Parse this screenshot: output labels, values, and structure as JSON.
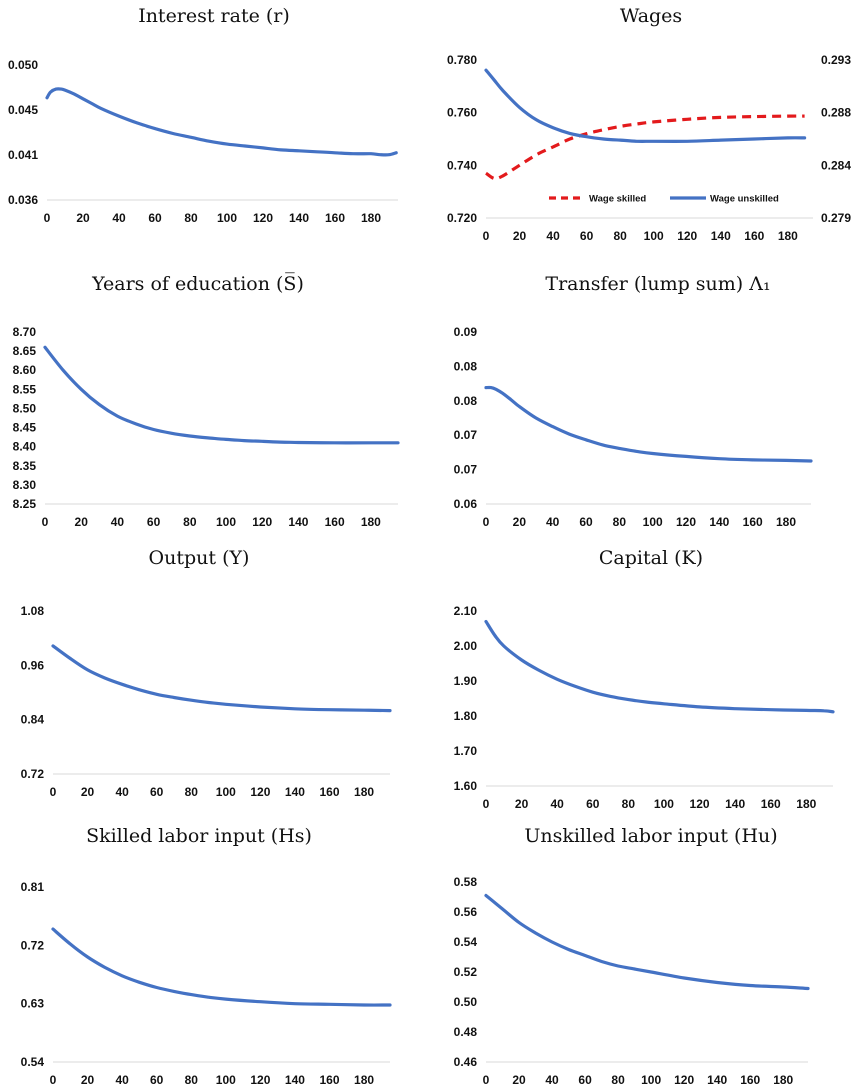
{
  "colors": {
    "primary": "#4472C4",
    "secondary": "#E31A1C",
    "axis": "#d9d9d9"
  },
  "chart_data": [
    {
      "id": "interest",
      "type": "line",
      "title": "Interest rate (r)",
      "x_ticks": [
        "0",
        "20",
        "40",
        "60",
        "80",
        "100",
        "120",
        "140",
        "160",
        "180"
      ],
      "y_ticks": [
        "0.050",
        "0.045",
        "0.041",
        "0.036"
      ],
      "ylim": [
        0.036,
        0.05
      ],
      "xlim": [
        0,
        195
      ],
      "series": [
        {
          "style": "solid",
          "color": "#4472C4",
          "x": [
            0,
            2,
            5,
            8,
            10,
            15,
            20,
            25,
            30,
            40,
            50,
            60,
            70,
            80,
            90,
            100,
            110,
            120,
            130,
            140,
            150,
            160,
            170,
            180,
            185,
            190,
            194
          ],
          "y": [
            0.0466,
            0.0472,
            0.0475,
            0.0475,
            0.0474,
            0.047,
            0.0465,
            0.046,
            0.0455,
            0.0447,
            0.044,
            0.0434,
            0.0429,
            0.0425,
            0.0421,
            0.0418,
            0.0416,
            0.0414,
            0.0412,
            0.0411,
            0.041,
            0.0409,
            0.0408,
            0.0408,
            0.0407,
            0.0407,
            0.0409
          ]
        }
      ]
    },
    {
      "id": "wages",
      "type": "line",
      "title": "Wages",
      "x_ticks": [
        "0",
        "20",
        "40",
        "60",
        "80",
        "100",
        "120",
        "140",
        "160",
        "180"
      ],
      "y_ticks": [
        "0.780",
        "0.760",
        "0.740",
        "0.720"
      ],
      "ylim": [
        0.72,
        0.78
      ],
      "y2_ticks": [
        "0.293",
        "0.288",
        "0.284",
        "0.279"
      ],
      "y2lim": [
        0.279,
        0.293
      ],
      "xlim": [
        0,
        195
      ],
      "legend": "bottom-center",
      "series": [
        {
          "name": "Wage skilled",
          "style": "dashed",
          "color": "#E31A1C",
          "axis": "left",
          "x": [
            0,
            5,
            10,
            20,
            30,
            40,
            50,
            60,
            70,
            80,
            90,
            100,
            120,
            140,
            160,
            180,
            190
          ],
          "y": [
            0.737,
            0.735,
            0.736,
            0.74,
            0.744,
            0.747,
            0.75,
            0.752,
            0.7535,
            0.7548,
            0.7557,
            0.7565,
            0.7575,
            0.7582,
            0.7585,
            0.7587,
            0.7587
          ]
        },
        {
          "name": "Wage unskilled",
          "style": "solid",
          "color": "#4472C4",
          "axis": "right",
          "x": [
            0,
            5,
            10,
            20,
            30,
            40,
            50,
            60,
            70,
            80,
            90,
            100,
            120,
            140,
            160,
            180,
            190
          ],
          "y": [
            0.2921,
            0.2912,
            0.2903,
            0.2888,
            0.2877,
            0.287,
            0.2865,
            0.2862,
            0.286,
            0.2859,
            0.2858,
            0.2858,
            0.2858,
            0.2859,
            0.286,
            0.2861,
            0.2861
          ]
        }
      ]
    },
    {
      "id": "education",
      "type": "line",
      "title": "Years of education (S̅)",
      "x_ticks": [
        "0",
        "20",
        "40",
        "60",
        "80",
        "100",
        "120",
        "140",
        "160",
        "180"
      ],
      "y_ticks": [
        "8.70",
        "8.65",
        "8.60",
        "8.55",
        "8.50",
        "8.45",
        "8.40",
        "8.35",
        "8.30",
        "8.25"
      ],
      "ylim": [
        8.25,
        8.7
      ],
      "xlim": [
        0,
        195
      ],
      "series": [
        {
          "style": "solid",
          "color": "#4472C4",
          "x": [
            0,
            10,
            20,
            30,
            40,
            50,
            60,
            70,
            80,
            90,
            100,
            110,
            120,
            130,
            140,
            160,
            180,
            195
          ],
          "y": [
            8.66,
            8.6,
            8.55,
            8.51,
            8.48,
            8.46,
            8.445,
            8.435,
            8.428,
            8.423,
            8.419,
            8.416,
            8.414,
            8.412,
            8.411,
            8.41,
            8.41,
            8.41
          ]
        }
      ]
    },
    {
      "id": "transfer",
      "type": "line",
      "title": "Transfer (lump sum) Λ₁",
      "x_ticks": [
        "0",
        "20",
        "40",
        "60",
        "80",
        "100",
        "120",
        "140",
        "160",
        "180"
      ],
      "y_ticks": [
        "0.09",
        "0.08",
        "0.08",
        "0.07",
        "0.07",
        "0.06"
      ],
      "ylim": [
        0.06,
        0.09
      ],
      "xlim": [
        0,
        195
      ],
      "series": [
        {
          "style": "solid",
          "color": "#4472C4",
          "x": [
            0,
            3,
            6,
            10,
            15,
            20,
            30,
            40,
            50,
            60,
            70,
            80,
            90,
            100,
            120,
            140,
            160,
            180,
            195
          ],
          "y": [
            0.0803,
            0.0803,
            0.08,
            0.0793,
            0.0782,
            0.077,
            0.075,
            0.0735,
            0.0722,
            0.0712,
            0.0703,
            0.0697,
            0.0692,
            0.0688,
            0.0683,
            0.0679,
            0.0677,
            0.0676,
            0.0675
          ]
        }
      ]
    },
    {
      "id": "output",
      "type": "line",
      "title": "Output (Y)",
      "x_ticks": [
        "0",
        "20",
        "40",
        "60",
        "80",
        "100",
        "120",
        "140",
        "160",
        "180"
      ],
      "y_ticks": [
        "1.08",
        "0.96",
        "0.84",
        "0.72"
      ],
      "ylim": [
        0.72,
        1.08
      ],
      "xlim": [
        0,
        195
      ],
      "series": [
        {
          "style": "solid",
          "color": "#4472C4",
          "x": [
            0,
            10,
            20,
            30,
            40,
            50,
            60,
            70,
            80,
            90,
            100,
            120,
            140,
            160,
            180,
            195
          ],
          "y": [
            1.003,
            0.975,
            0.95,
            0.932,
            0.918,
            0.906,
            0.896,
            0.889,
            0.883,
            0.878,
            0.874,
            0.868,
            0.864,
            0.862,
            0.861,
            0.86
          ]
        }
      ]
    },
    {
      "id": "capital",
      "type": "line",
      "title": "Capital (K)",
      "x_ticks": [
        "0",
        "20",
        "40",
        "60",
        "80",
        "100",
        "120",
        "140",
        "160",
        "180"
      ],
      "y_ticks": [
        "2.10",
        "2.00",
        "1.90",
        "1.80",
        "1.70",
        "1.60"
      ],
      "ylim": [
        1.6,
        2.1
      ],
      "xlim": [
        0,
        195
      ],
      "series": [
        {
          "style": "solid",
          "color": "#4472C4",
          "x": [
            0,
            5,
            10,
            20,
            30,
            40,
            50,
            60,
            70,
            80,
            90,
            100,
            120,
            140,
            160,
            180,
            190,
            195
          ],
          "y": [
            2.07,
            2.03,
            2.0,
            1.96,
            1.93,
            1.905,
            1.885,
            1.868,
            1.856,
            1.847,
            1.84,
            1.835,
            1.826,
            1.821,
            1.818,
            1.816,
            1.815,
            1.812
          ]
        }
      ]
    },
    {
      "id": "skilled",
      "type": "line",
      "title": "Skilled labor input (Hs)",
      "x_ticks": [
        "0",
        "20",
        "40",
        "60",
        "80",
        "100",
        "120",
        "140",
        "160",
        "180"
      ],
      "y_ticks": [
        "0.81",
        "0.72",
        "0.63",
        "0.54"
      ],
      "ylim": [
        0.54,
        0.81
      ],
      "xlim": [
        0,
        195
      ],
      "series": [
        {
          "style": "solid",
          "color": "#4472C4",
          "x": [
            0,
            10,
            20,
            30,
            40,
            50,
            60,
            70,
            80,
            90,
            100,
            120,
            140,
            160,
            180,
            195
          ],
          "y": [
            0.745,
            0.722,
            0.702,
            0.686,
            0.673,
            0.663,
            0.655,
            0.649,
            0.644,
            0.64,
            0.637,
            0.633,
            0.63,
            0.629,
            0.628,
            0.628
          ]
        }
      ]
    },
    {
      "id": "unskilled",
      "type": "line",
      "title": "Unskilled labor input (Hu)",
      "x_ticks": [
        "0",
        "20",
        "40",
        "60",
        "80",
        "100",
        "120",
        "140",
        "160",
        "180"
      ],
      "y_ticks": [
        "0.58",
        "0.56",
        "0.54",
        "0.52",
        "0.50",
        "0.48",
        "0.46"
      ],
      "ylim": [
        0.46,
        0.58
      ],
      "xlim": [
        0,
        195
      ],
      "series": [
        {
          "style": "solid",
          "color": "#4472C4",
          "x": [
            0,
            10,
            20,
            30,
            40,
            50,
            60,
            70,
            80,
            90,
            100,
            120,
            140,
            160,
            180,
            195
          ],
          "y": [
            0.571,
            0.562,
            0.553,
            0.546,
            0.54,
            0.535,
            0.531,
            0.527,
            0.524,
            0.522,
            0.52,
            0.516,
            0.513,
            0.511,
            0.51,
            0.509
          ]
        }
      ]
    }
  ]
}
